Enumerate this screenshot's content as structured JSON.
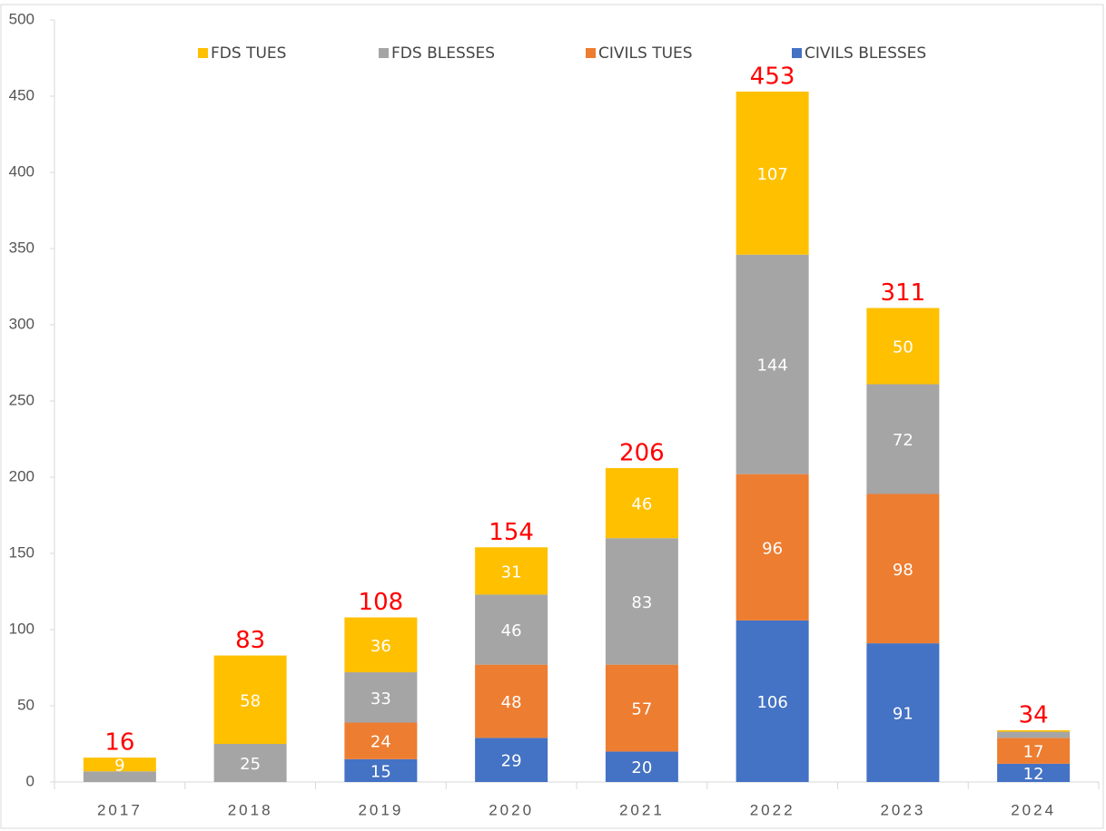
{
  "chart_data": {
    "type": "stacked_bar",
    "categories": [
      "2017",
      "2018",
      "2019",
      "2020",
      "2021",
      "2022",
      "2023",
      "2024"
    ],
    "series": [
      {
        "name": "FDS TUES",
        "color": "#ffc000",
        "values": [
          9,
          58,
          36,
          31,
          46,
          107,
          50,
          1
        ]
      },
      {
        "name": "FDS BLESSES",
        "color": "#a5a5a5",
        "values": [
          7,
          25,
          33,
          46,
          83,
          144,
          72,
          4
        ]
      },
      {
        "name": "CIVILS TUES",
        "color": "#ed7d31",
        "values": [
          null,
          null,
          24,
          48,
          57,
          96,
          98,
          17
        ]
      },
      {
        "name": "CIVILS BLESSES",
        "color": "#4472c4",
        "values": [
          null,
          null,
          15,
          29,
          20,
          106,
          91,
          12
        ]
      }
    ],
    "totals": [
      16,
      83,
      108,
      154,
      206,
      453,
      311,
      34
    ],
    "ylim": [
      0,
      500
    ],
    "yticks": [
      0,
      50,
      100,
      150,
      200,
      250,
      300,
      350,
      400,
      450,
      500
    ],
    "grid": false
  }
}
